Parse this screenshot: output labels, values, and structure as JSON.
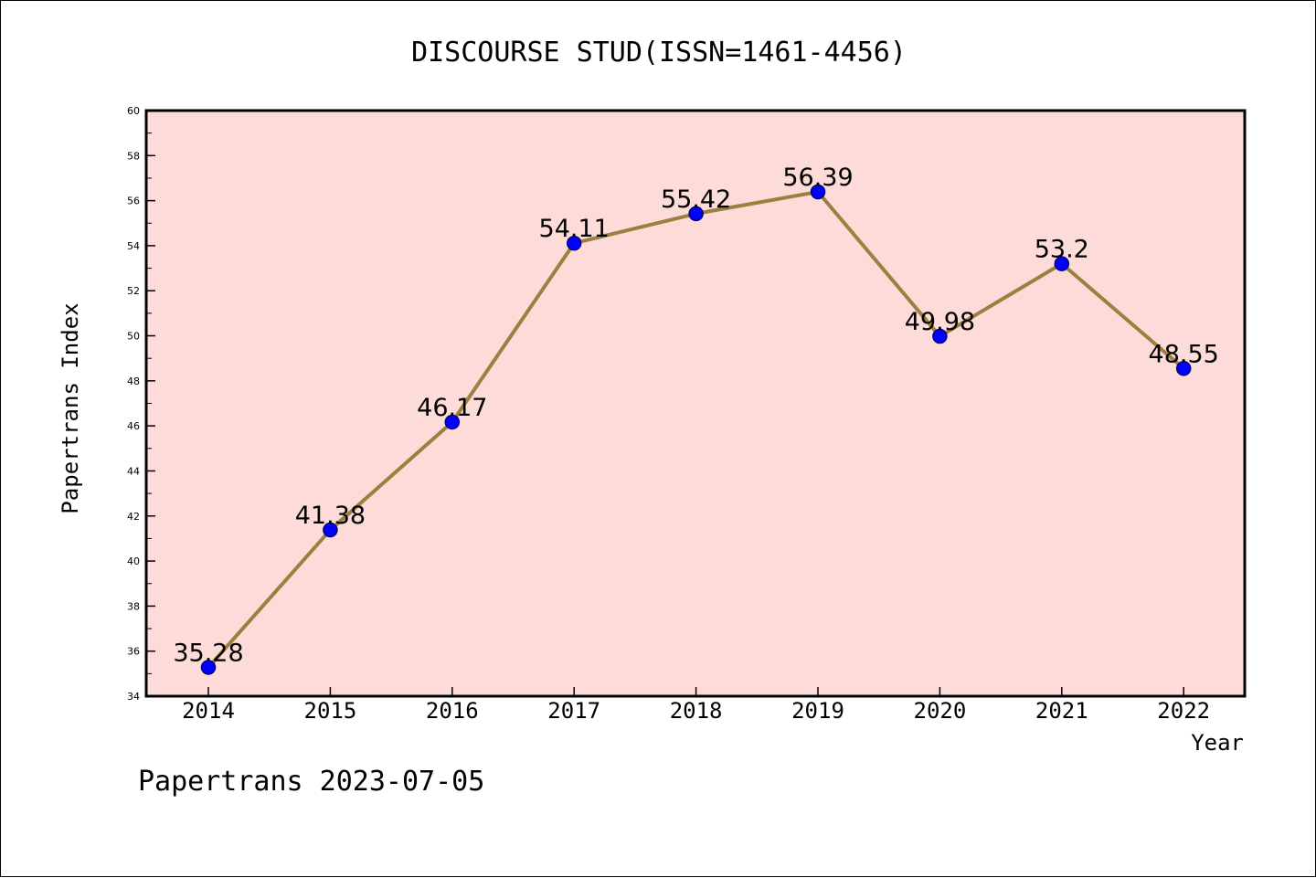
{
  "chart_data": {
    "type": "line",
    "title": "DISCOURSE STUD(ISSN=1461-4456)",
    "xlabel": "Year",
    "ylabel": "Papertrans Index",
    "categories": [
      "2014",
      "2015",
      "2016",
      "2017",
      "2018",
      "2019",
      "2020",
      "2021",
      "2022"
    ],
    "series": [
      {
        "values": [
          35.28,
          41.38,
          46.17,
          54.11,
          55.42,
          56.39,
          49.98,
          53.2,
          48.55
        ],
        "data_labels": [
          "35.28",
          "41.38",
          "46.17",
          "54.11",
          "55.42",
          "56.39",
          "49.98",
          "53.2",
          "48.55"
        ]
      }
    ],
    "ylim": [
      34,
      60
    ],
    "yticks": [
      "34",
      "36",
      "38",
      "40",
      "42",
      "44",
      "46",
      "48",
      "50",
      "52",
      "54",
      "56",
      "58",
      "60"
    ],
    "grid": false,
    "colors": {
      "plot_background": "#fddbd8",
      "line": "#9b8040",
      "marker": "#0000ff",
      "marker_edge": "#00007f"
    }
  },
  "footer": {
    "text": "Papertrans 2023-07-05"
  }
}
